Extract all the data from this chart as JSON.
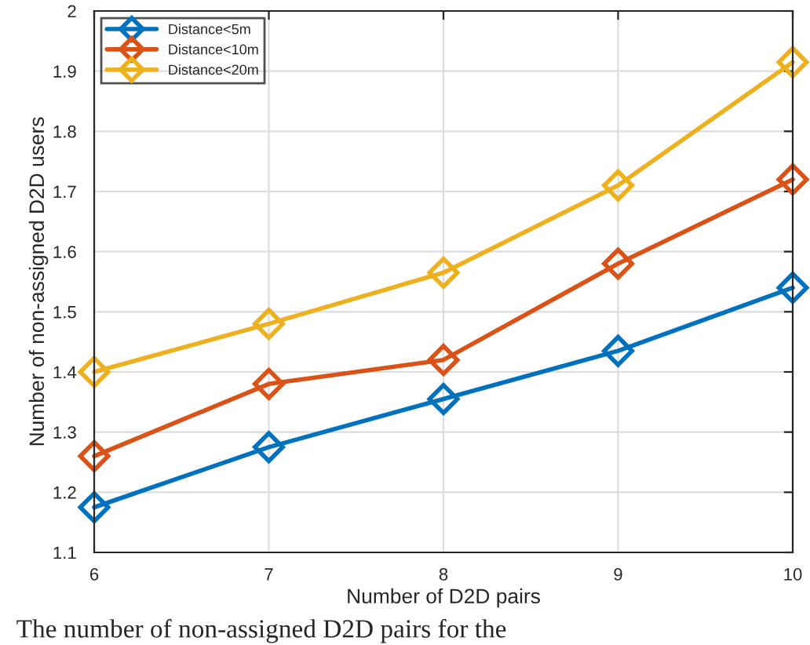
{
  "chart_data": {
    "type": "line",
    "xlabel": "Number of D2D pairs",
    "ylabel": "Number of non-assigned D2D users",
    "x": [
      6,
      7,
      8,
      9,
      10
    ],
    "series": [
      {
        "name": "Distance<5m",
        "color": "#0072bd",
        "values": [
          1.175,
          1.275,
          1.355,
          1.435,
          1.54
        ]
      },
      {
        "name": "Distance<10m",
        "color": "#d95319",
        "values": [
          1.26,
          1.38,
          1.42,
          1.58,
          1.72
        ]
      },
      {
        "name": "Distance<20m",
        "color": "#edb120",
        "values": [
          1.4,
          1.48,
          1.565,
          1.71,
          1.915
        ]
      }
    ],
    "xlim": [
      6,
      10
    ],
    "xticks": [
      6,
      7,
      8,
      9,
      10
    ],
    "ylim": [
      1.1,
      2
    ],
    "yticks": [
      1.1,
      1.2,
      1.3,
      1.4,
      1.5,
      1.6,
      1.7,
      1.8,
      1.9,
      2
    ],
    "grid": true,
    "legend": "top left",
    "marker": "diamond",
    "line_style": "solid",
    "annotations": [
      "The number of non-assigned D2D pairs for the"
    ]
  }
}
